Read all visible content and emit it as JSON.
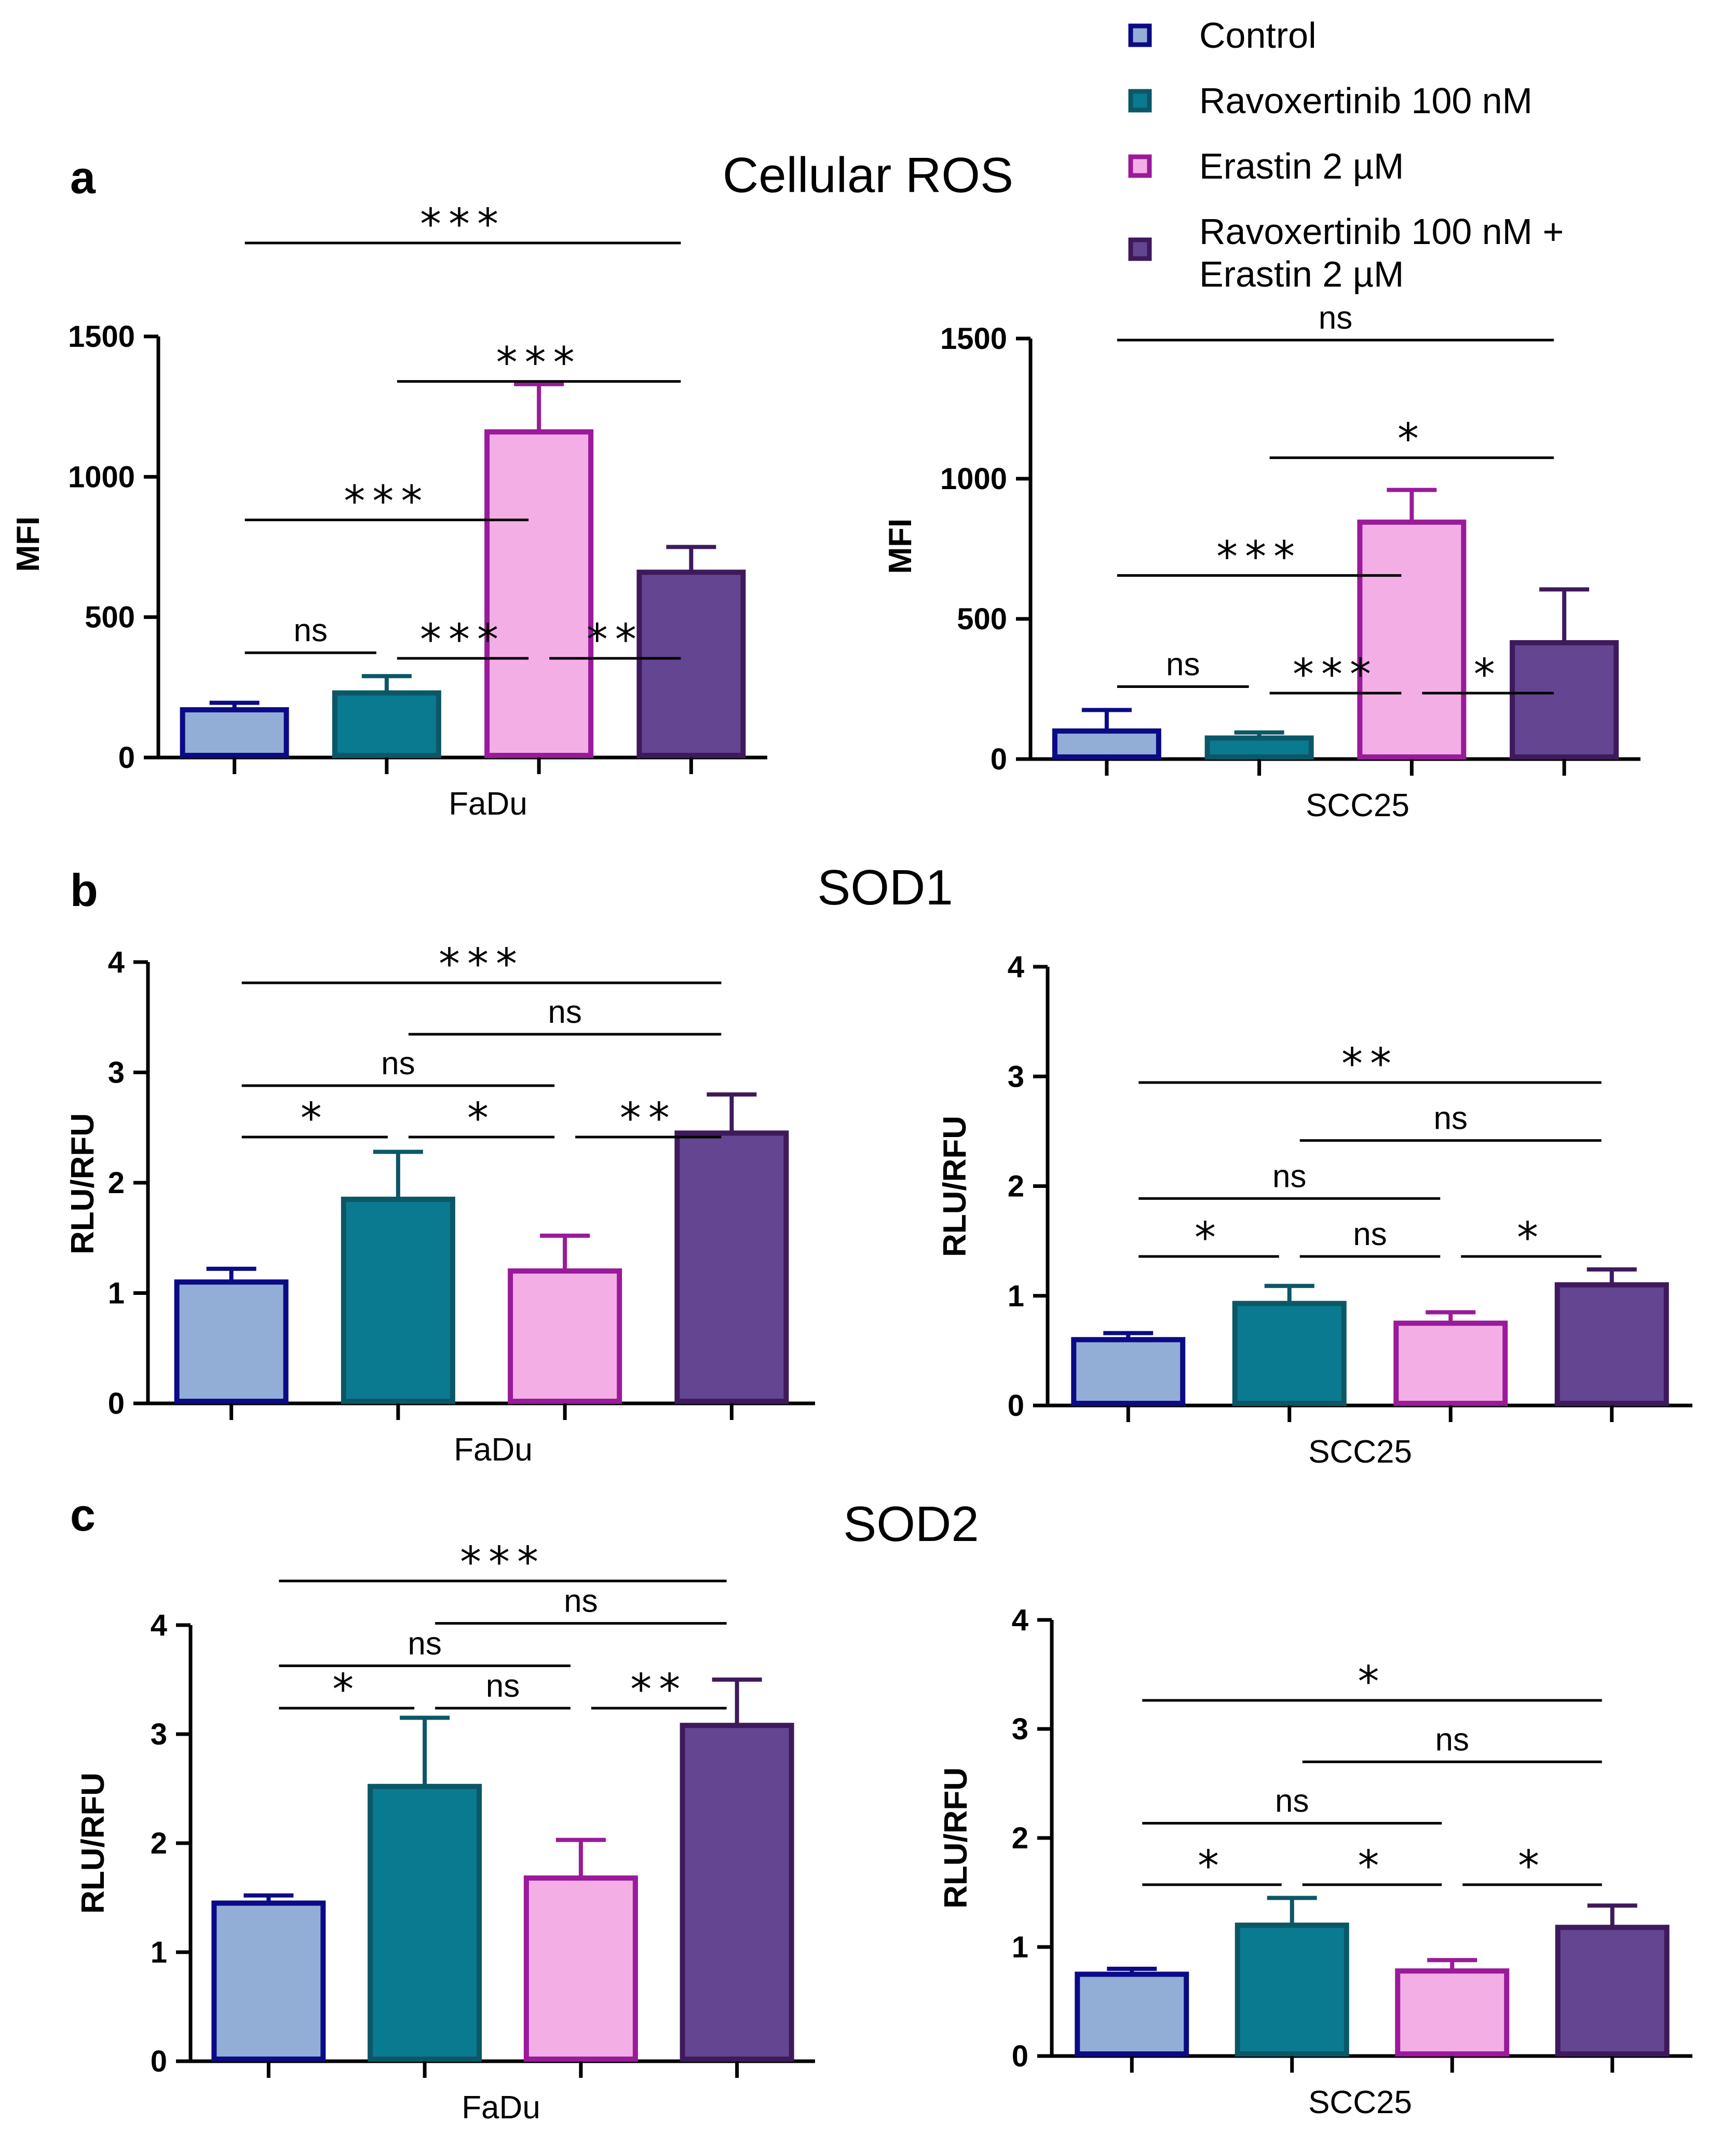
{
  "legend": {
    "items": [
      {
        "name": "Control",
        "fill": "#92aed6",
        "edge": "#0b0b86"
      },
      {
        "name": "Ravoxertinib 100 nM",
        "fill": "#0a7a91",
        "edge": "#0c5766"
      },
      {
        "name": "Erastin 2 µM",
        "fill": "#f4aee6",
        "edge": "#9a1a9a"
      },
      {
        "name": "Ravoxertinib 100 nM +",
        "name2": "Erastin 2 µM",
        "fill": "#644592",
        "edge": "#3e1a5c"
      }
    ]
  },
  "sections": [
    {
      "letter": "a",
      "title": "Cellular ROS"
    },
    {
      "letter": "b",
      "title": "SOD1"
    },
    {
      "letter": "c",
      "title": "SOD2"
    }
  ],
  "chart_data": [
    {
      "type": "bar",
      "panel": "a-left",
      "xlabel": "FaDu",
      "ylabel": "MFI",
      "ylim": [
        0,
        1500
      ],
      "yticks": [
        0,
        500,
        1000,
        1500
      ],
      "categories": [
        "Control",
        "Ravoxertinib 100 nM",
        "Erastin 2 µM",
        "Ravoxertinib 100 nM + Erastin 2 µM"
      ],
      "values": [
        170,
        230,
        1160,
        660
      ],
      "errors": [
        25,
        60,
        170,
        90
      ],
      "significance": [
        {
          "from": 0,
          "to": 1,
          "label": "ns"
        },
        {
          "from": 1,
          "to": 2,
          "label": "***"
        },
        {
          "from": 2,
          "to": 3,
          "label": "**"
        },
        {
          "from": 0,
          "to": 2,
          "label": "***"
        },
        {
          "from": 1,
          "to": 3,
          "label": "***"
        },
        {
          "from": 0,
          "to": 3,
          "label": "***"
        }
      ]
    },
    {
      "type": "bar",
      "panel": "a-right",
      "xlabel": "SCC25",
      "ylabel": "MFI",
      "ylim": [
        0,
        1500
      ],
      "yticks": [
        0,
        500,
        1000,
        1500
      ],
      "categories": [
        "Control",
        "Ravoxertinib 100 nM",
        "Erastin 2 µM",
        "Ravoxertinib 100 nM + Erastin 2 µM"
      ],
      "values": [
        100,
        75,
        845,
        415
      ],
      "errors": [
        75,
        20,
        115,
        190
      ],
      "significance": [
        {
          "from": 0,
          "to": 1,
          "label": "ns"
        },
        {
          "from": 1,
          "to": 2,
          "label": "***"
        },
        {
          "from": 2,
          "to": 3,
          "label": "*"
        },
        {
          "from": 0,
          "to": 2,
          "label": "***"
        },
        {
          "from": 1,
          "to": 3,
          "label": "*"
        },
        {
          "from": 0,
          "to": 3,
          "label": "ns"
        }
      ]
    },
    {
      "type": "bar",
      "panel": "b-left",
      "xlabel": "FaDu",
      "ylabel": "RLU/RFU",
      "ylim": [
        0,
        4
      ],
      "yticks": [
        0,
        1,
        2,
        3,
        4
      ],
      "categories": [
        "Control",
        "Ravoxertinib 100 nM",
        "Erastin 2 µM",
        "Ravoxertinib 100 nM + Erastin 2 µM"
      ],
      "values": [
        1.1,
        1.85,
        1.2,
        2.45
      ],
      "errors": [
        0.12,
        0.43,
        0.32,
        0.35
      ],
      "significance": [
        {
          "from": 0,
          "to": 1,
          "label": "*"
        },
        {
          "from": 1,
          "to": 2,
          "label": "*"
        },
        {
          "from": 2,
          "to": 3,
          "label": "**"
        },
        {
          "from": 0,
          "to": 2,
          "label": "ns"
        },
        {
          "from": 1,
          "to": 3,
          "label": "ns"
        },
        {
          "from": 0,
          "to": 3,
          "label": "***"
        }
      ]
    },
    {
      "type": "bar",
      "panel": "b-right",
      "xlabel": "SCC25",
      "ylabel": "RLU/RFU",
      "ylim": [
        0,
        4
      ],
      "yticks": [
        0,
        1,
        2,
        3,
        4
      ],
      "categories": [
        "Control",
        "Ravoxertinib 100 nM",
        "Erastin 2 µM",
        "Ravoxertinib 100 nM + Erastin 2 µM"
      ],
      "values": [
        0.6,
        0.93,
        0.75,
        1.1
      ],
      "errors": [
        0.06,
        0.16,
        0.1,
        0.14
      ],
      "significance": [
        {
          "from": 0,
          "to": 1,
          "label": "*"
        },
        {
          "from": 1,
          "to": 2,
          "label": "ns"
        },
        {
          "from": 2,
          "to": 3,
          "label": "*"
        },
        {
          "from": 0,
          "to": 2,
          "label": "ns"
        },
        {
          "from": 1,
          "to": 3,
          "label": "ns"
        },
        {
          "from": 0,
          "to": 3,
          "label": "**"
        }
      ]
    },
    {
      "type": "bar",
      "panel": "c-left",
      "xlabel": "FaDu",
      "ylabel": "RLU/RFU",
      "ylim": [
        0,
        4
      ],
      "yticks": [
        0,
        1,
        2,
        3,
        4
      ],
      "categories": [
        "Control",
        "Ravoxertinib 100 nM",
        "Erastin 2 µM",
        "Ravoxertinib 100 nM + Erastin 2 µM"
      ],
      "values": [
        1.45,
        2.52,
        1.68,
        3.08
      ],
      "errors": [
        0.07,
        0.63,
        0.35,
        0.42
      ],
      "significance": [
        {
          "from": 0,
          "to": 1,
          "label": "*"
        },
        {
          "from": 1,
          "to": 2,
          "label": "ns"
        },
        {
          "from": 2,
          "to": 3,
          "label": "**"
        },
        {
          "from": 0,
          "to": 2,
          "label": "ns"
        },
        {
          "from": 1,
          "to": 3,
          "label": "ns"
        },
        {
          "from": 0,
          "to": 3,
          "label": "***"
        }
      ]
    },
    {
      "type": "bar",
      "panel": "c-right",
      "xlabel": "SCC25",
      "ylabel": "RLU/RFU",
      "ylim": [
        0,
        4
      ],
      "yticks": [
        0,
        1,
        2,
        3,
        4
      ],
      "categories": [
        "Control",
        "Ravoxertinib 100 nM",
        "Erastin 2 µM",
        "Ravoxertinib 100 nM + Erastin 2 µM"
      ],
      "values": [
        0.75,
        1.2,
        0.78,
        1.18
      ],
      "errors": [
        0.05,
        0.25,
        0.1,
        0.2
      ],
      "significance": [
        {
          "from": 0,
          "to": 1,
          "label": "*"
        },
        {
          "from": 1,
          "to": 2,
          "label": "*"
        },
        {
          "from": 2,
          "to": 3,
          "label": "*"
        },
        {
          "from": 0,
          "to": 2,
          "label": "ns"
        },
        {
          "from": 1,
          "to": 3,
          "label": "ns"
        },
        {
          "from": 0,
          "to": 3,
          "label": "*"
        }
      ]
    }
  ]
}
